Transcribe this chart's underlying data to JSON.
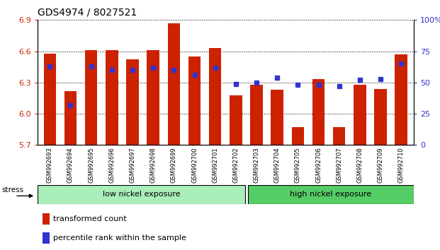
{
  "title": "GDS4974 / 8027521",
  "samples": [
    "GSM992693",
    "GSM992694",
    "GSM992695",
    "GSM992696",
    "GSM992697",
    "GSM992698",
    "GSM992699",
    "GSM992700",
    "GSM992701",
    "GSM992702",
    "GSM992703",
    "GSM992704",
    "GSM992705",
    "GSM992706",
    "GSM992707",
    "GSM992708",
    "GSM992709",
    "GSM992710"
  ],
  "red_values": [
    6.58,
    6.22,
    6.61,
    6.61,
    6.52,
    6.61,
    6.87,
    6.55,
    6.63,
    6.18,
    6.28,
    6.23,
    5.87,
    6.33,
    5.87,
    6.28,
    6.24,
    6.57
  ],
  "blue_values": [
    63,
    32,
    63,
    60,
    60,
    62,
    60,
    56,
    62,
    49,
    50,
    54,
    48,
    48,
    47,
    52,
    53,
    65
  ],
  "ylim_left": [
    5.7,
    6.9
  ],
  "ylim_right": [
    0,
    100
  ],
  "yticks_left": [
    5.7,
    6.0,
    6.3,
    6.6,
    6.9
  ],
  "yticks_right": [
    0,
    25,
    50,
    75,
    100
  ],
  "bar_color": "#CC2200",
  "dot_color": "#3333CC",
  "background_color": "#ffffff",
  "plot_bg": "#ffffff",
  "grid_color": "#000000",
  "low_nickel_label": "low nickel exposure",
  "high_nickel_label": "high nickel exposure",
  "low_nickel_color": "#AAEEBB",
  "high_nickel_color": "#55CC66",
  "stress_label": "stress",
  "legend_red": "transformed count",
  "legend_blue": "percentile rank within the sample",
  "n_low": 10,
  "n_high": 8
}
